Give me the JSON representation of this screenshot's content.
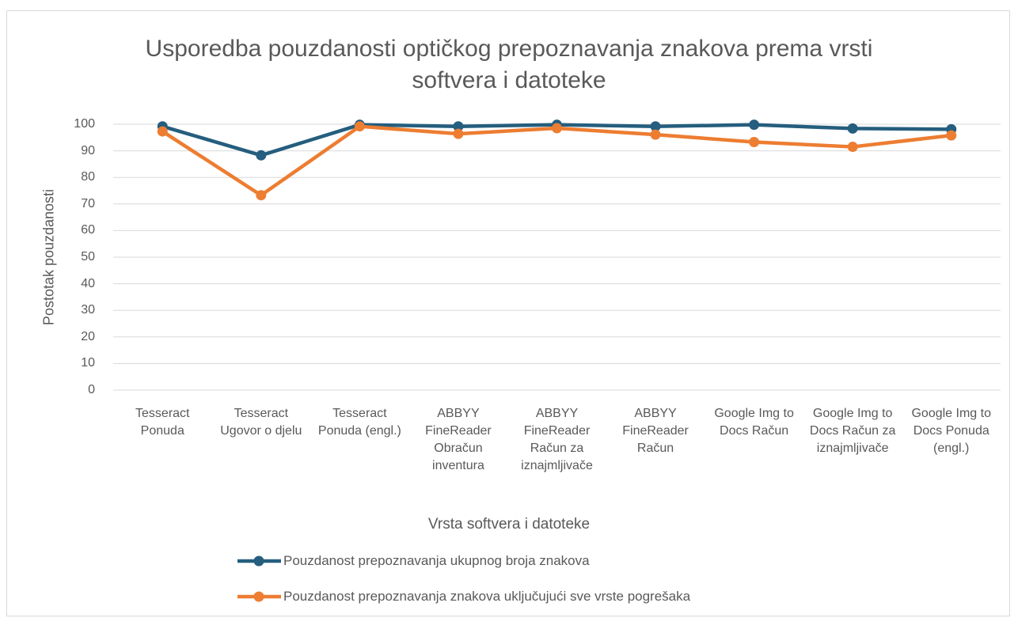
{
  "chart_data": {
    "type": "line",
    "title": "Usporedba pouzdanosti optičkog prepoznavanja znakova prema vrsti softvera i datoteke",
    "x_label": "Vrsta softvera i datoteke",
    "y_label": "Postotak pouzdanosti",
    "categories": [
      "Tesseract Ponuda",
      "Tesseract Ugovor o djelu",
      "Tesseract Ponuda (engl.)",
      "ABBYY FineReader Obračun inventura",
      "ABBYY FineReader Račun za iznajmljivače",
      "ABBYY FineReader Račun",
      "Google Img to Docs Račun",
      "Google Img to Docs Račun za iznajmljivače",
      "Google Img to Docs Ponuda (engl.)"
    ],
    "series": [
      {
        "name": "Pouzdanost prepoznavanja ukupnog broja znakova",
        "color": "#255e7e",
        "values": [
          99.2,
          88.3,
          99.8,
          99.2,
          99.8,
          99.2,
          99.8,
          98.4,
          98.1
        ]
      },
      {
        "name": "Pouzdanost prepoznavanja znakova uključujući sve vrste pogrešaka",
        "color": "#ed7d31",
        "values": [
          97.3,
          73.3,
          99.2,
          96.4,
          98.5,
          96.1,
          93.3,
          91.5,
          95.8
        ]
      }
    ],
    "ylim": [
      0,
      100
    ],
    "yticks": [
      0,
      10,
      20,
      30,
      40,
      50,
      60,
      70,
      80,
      90,
      100
    ],
    "grid": true,
    "legend": "bottom"
  }
}
